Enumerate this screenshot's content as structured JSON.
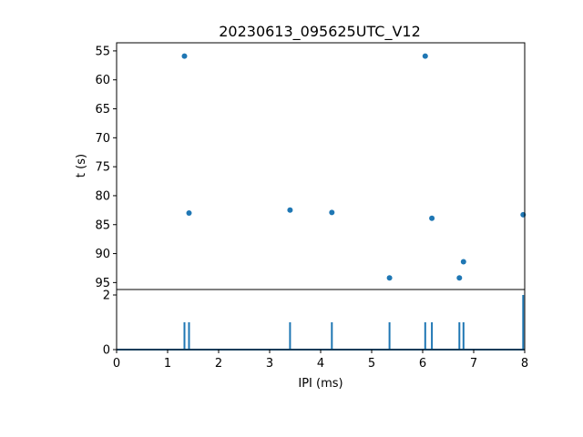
{
  "chart_data": [
    {
      "type": "scatter",
      "title": "20230613_095625UTC_V12",
      "xlabel": "",
      "ylabel": "t (s)",
      "xlim": [
        0,
        8
      ],
      "ylim": [
        96.2,
        53.6
      ],
      "y_inverted": true,
      "grid": false,
      "yticks": [
        55,
        60,
        65,
        70,
        75,
        80,
        85,
        90,
        95
      ],
      "color": "#1f77b4",
      "points": [
        {
          "x": 1.33,
          "y": 55.9
        },
        {
          "x": 6.05,
          "y": 55.9
        },
        {
          "x": 1.42,
          "y": 83.0
        },
        {
          "x": 3.4,
          "y": 82.5
        },
        {
          "x": 4.22,
          "y": 82.9
        },
        {
          "x": 6.18,
          "y": 83.9
        },
        {
          "x": 7.97,
          "y": 83.3
        },
        {
          "x": 6.8,
          "y": 91.4
        },
        {
          "x": 5.35,
          "y": 94.2
        },
        {
          "x": 6.72,
          "y": 94.2
        }
      ]
    },
    {
      "type": "line",
      "title": "",
      "xlabel": "IPI (ms)",
      "ylabel": "",
      "xlim": [
        0,
        8
      ],
      "ylim": [
        0,
        2.2
      ],
      "grid": false,
      "xticks": [
        0,
        1,
        2,
        3,
        4,
        5,
        6,
        7,
        8
      ],
      "yticks": [
        0,
        2
      ],
      "color": "#1f77b4",
      "spikes": [
        {
          "x": 1.33,
          "y": 1
        },
        {
          "x": 1.42,
          "y": 1
        },
        {
          "x": 3.4,
          "y": 1
        },
        {
          "x": 4.22,
          "y": 1
        },
        {
          "x": 5.35,
          "y": 1
        },
        {
          "x": 6.05,
          "y": 1
        },
        {
          "x": 6.18,
          "y": 1
        },
        {
          "x": 6.72,
          "y": 1
        },
        {
          "x": 6.8,
          "y": 1
        },
        {
          "x": 7.97,
          "y": 2
        }
      ]
    }
  ]
}
